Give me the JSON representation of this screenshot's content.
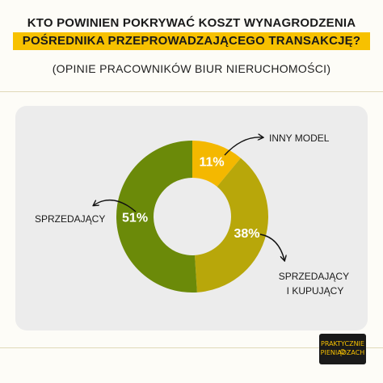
{
  "header": {
    "title_line1": "KTO POWINIEN POKRYWAĆ KOSZT WYNAGRODZENIA",
    "title_line2": "POŚREDNIKA PRZEPROWADZAJĄCEGO TRANSAKCJĘ?",
    "subtitle": "(OPINIE PRACOWNIKÓW BIUR NIERUCHOMOŚCI)"
  },
  "colors": {
    "accent": "#f7c100",
    "inny_model": "#f4b800",
    "sprzedajacy_i_kupujacy": "#b8a70a",
    "sprzedajacy": "#6b8a09",
    "panel": "#ececec"
  },
  "chart_data": {
    "type": "pie",
    "donut": true,
    "categories": [
      "INNY MODEL",
      "SPRZEDAJĄCY I KUPUJĄCY",
      "SPRZEDAJĄCY"
    ],
    "values": [
      11,
      38,
      51
    ],
    "value_labels": [
      "11%",
      "38%",
      "51%"
    ],
    "legend": "none"
  },
  "logo": {
    "line1": "PRAKTYCZNIE O",
    "line2": "PIENIĄDZACH"
  }
}
